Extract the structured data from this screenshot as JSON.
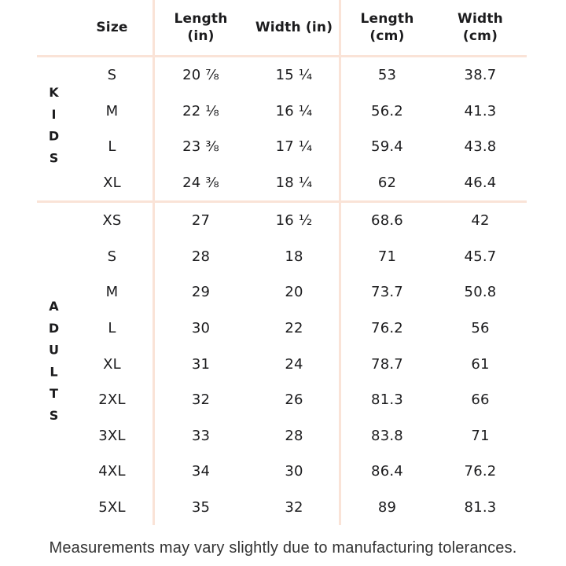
{
  "chart_data": {
    "type": "table",
    "columns": [
      "Size",
      "Length (in)",
      "Width (in)",
      "Length (cm)",
      "Width (cm)"
    ],
    "sections": [
      {
        "label": "KIDS",
        "rows": [
          [
            "S",
            "20 ⅞",
            "15 ¼",
            "53",
            "38.7"
          ],
          [
            "M",
            "22 ⅛",
            "16 ¼",
            "56.2",
            "41.3"
          ],
          [
            "L",
            "23 ⅜",
            "17 ¼",
            "59.4",
            "43.8"
          ],
          [
            "XL",
            "24 ⅜",
            "18 ¼",
            "62",
            "46.4"
          ]
        ]
      },
      {
        "label": "ADULTS",
        "rows": [
          [
            "XS",
            "27",
            "16 ½",
            "68.6",
            "42"
          ],
          [
            "S",
            "28",
            "18",
            "71",
            "45.7"
          ],
          [
            "M",
            "29",
            "20",
            "73.7",
            "50.8"
          ],
          [
            "L",
            "30",
            "22",
            "76.2",
            "56"
          ],
          [
            "XL",
            "31",
            "24",
            "78.7",
            "61"
          ],
          [
            "2XL",
            "32",
            "26",
            "81.3",
            "66"
          ],
          [
            "3XL",
            "33",
            "28",
            "83.8",
            "71"
          ],
          [
            "4XL",
            "34",
            "30",
            "86.4",
            "76.2"
          ],
          [
            "5XL",
            "35",
            "32",
            "89",
            "81.3"
          ]
        ]
      }
    ],
    "footnote": "Measurements may vary slightly due to manufacturing tolerances."
  },
  "colors": {
    "divider": "#fae3d7",
    "text": "#1c1c1e",
    "background": "#ffffff",
    "note_text": "#333333"
  }
}
